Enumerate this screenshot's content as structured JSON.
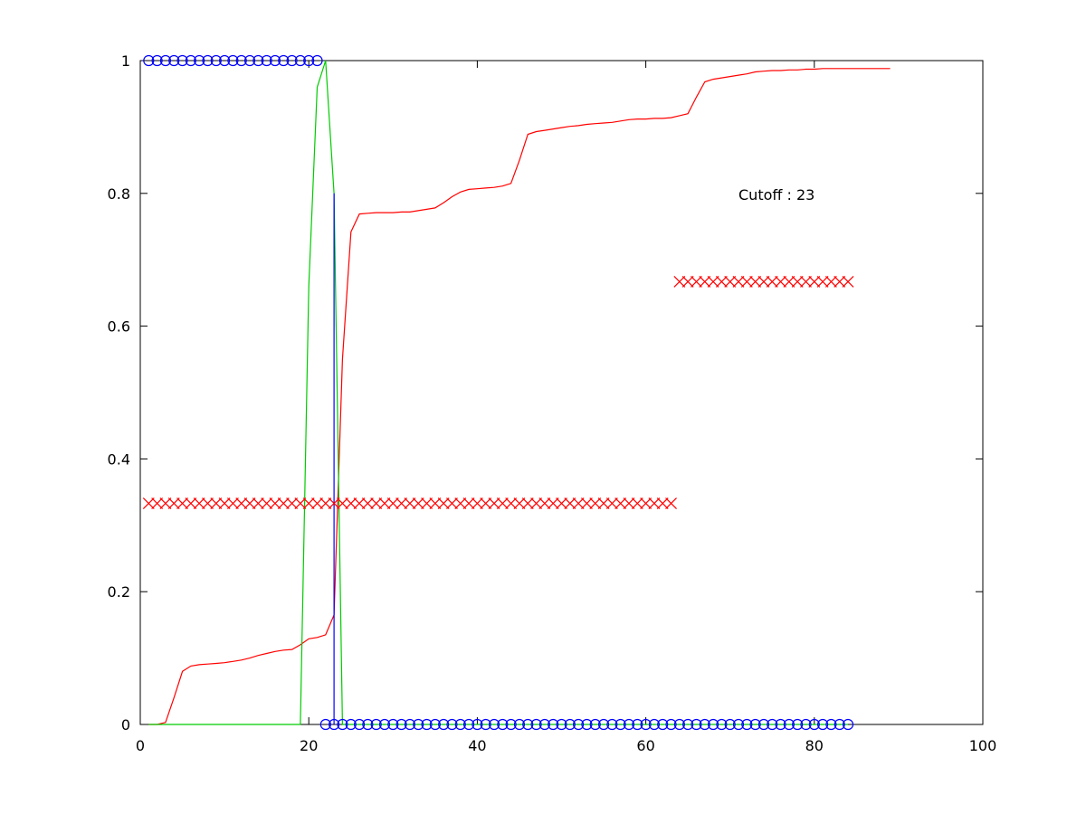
{
  "chart_data": {
    "type": "line",
    "title": "",
    "xlabel": "",
    "ylabel": "",
    "xlim": [
      0,
      100
    ],
    "ylim": [
      0,
      1
    ],
    "x_ticks": [
      "0",
      "20",
      "40",
      "60",
      "80",
      "100"
    ],
    "y_ticks": [
      "0",
      "0.2",
      "0.4",
      "0.6",
      "0.8",
      "1"
    ],
    "grid": false,
    "legend": "none",
    "annotation": {
      "text": "Cutoff : 23",
      "x": 71,
      "y": 0.79
    },
    "colors": {
      "red": "#ff0000",
      "green": "#00cc00",
      "blue": "#0000ff"
    },
    "series": [
      {
        "style": "line",
        "color": "#ff0000",
        "x": [
          1,
          2,
          3,
          4,
          5,
          6,
          7,
          8,
          9,
          10,
          11,
          12,
          13,
          14,
          15,
          16,
          17,
          18,
          19,
          20,
          21,
          22,
          23,
          24,
          25,
          26,
          27,
          28,
          29,
          30,
          31,
          32,
          33,
          34,
          35,
          36,
          37,
          38,
          39,
          40,
          41,
          42,
          43,
          44,
          45,
          46,
          47,
          48,
          49,
          50,
          51,
          52,
          53,
          54,
          55,
          56,
          57,
          58,
          59,
          60,
          61,
          62,
          63,
          64,
          65,
          66,
          67,
          68,
          69,
          70,
          71,
          72,
          73,
          74,
          75,
          76,
          77,
          78,
          79,
          80,
          81,
          82,
          83,
          84,
          85,
          86,
          87,
          88,
          89
        ],
        "y": [
          0.0,
          0.0,
          0.003,
          0.04,
          0.08,
          0.088,
          0.09,
          0.091,
          0.092,
          0.093,
          0.095,
          0.097,
          0.1,
          0.104,
          0.107,
          0.11,
          0.112,
          0.113,
          0.12,
          0.129,
          0.131,
          0.135,
          0.165,
          0.55,
          0.742,
          0.769,
          0.77,
          0.771,
          0.771,
          0.771,
          0.772,
          0.772,
          0.774,
          0.776,
          0.778,
          0.786,
          0.795,
          0.802,
          0.806,
          0.807,
          0.808,
          0.809,
          0.811,
          0.815,
          0.85,
          0.889,
          0.893,
          0.895,
          0.897,
          0.899,
          0.901,
          0.902,
          0.904,
          0.905,
          0.906,
          0.907,
          0.909,
          0.911,
          0.912,
          0.912,
          0.913,
          0.913,
          0.914,
          0.917,
          0.92,
          0.945,
          0.968,
          0.972,
          0.974,
          0.976,
          0.978,
          0.98,
          0.983,
          0.984,
          0.985,
          0.985,
          0.986,
          0.986,
          0.987,
          0.987,
          0.988,
          0.988,
          0.988,
          0.988,
          0.988,
          0.988,
          0.988,
          0.988,
          0.988
        ]
      },
      {
        "style": "line",
        "color": "#00cc00",
        "x": [
          1,
          19,
          20,
          21,
          22,
          23,
          24,
          84
        ],
        "y": [
          0,
          0,
          0.66,
          0.96,
          1.0,
          0.8,
          0,
          0
        ]
      },
      {
        "style": "line",
        "color": "#0000ff",
        "x": [
          23,
          23
        ],
        "y": [
          0.8,
          0
        ]
      },
      {
        "style": "marker-x",
        "color": "#ff0000",
        "x_start": 1,
        "x_end": 63,
        "y": 0.333
      },
      {
        "style": "marker-x",
        "color": "#ff0000",
        "x_start": 64,
        "x_end": 84,
        "y": 0.667
      },
      {
        "style": "marker-circle",
        "color": "#0000ff",
        "x_start": 1,
        "x_end": 21,
        "y": 1
      },
      {
        "style": "marker-circle",
        "color": "#0000ff",
        "x_start": 22,
        "x_end": 84,
        "y": 0
      }
    ]
  }
}
